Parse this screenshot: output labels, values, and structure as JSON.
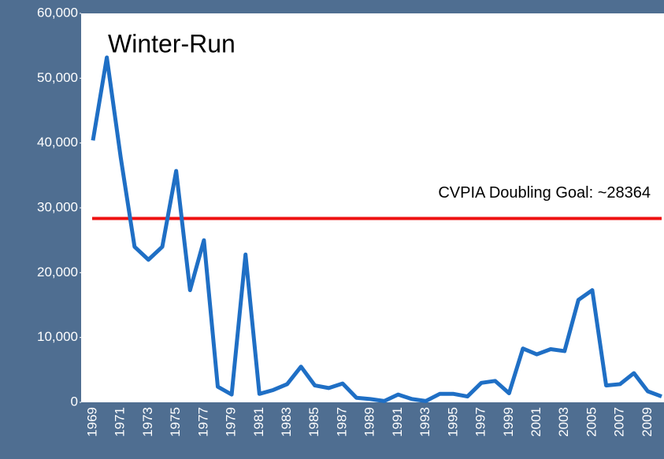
{
  "chart_data": {
    "type": "line",
    "title": "Winter-Run",
    "categories": [
      "1969",
      null,
      "1971",
      null,
      "1973",
      null,
      "1975",
      null,
      "1977",
      null,
      "1979",
      null,
      "1981",
      null,
      "1983",
      null,
      "1985",
      null,
      "1987",
      null,
      "1989",
      null,
      "1991",
      null,
      "1993",
      null,
      "1995",
      null,
      "1997",
      null,
      "1999",
      null,
      "2001",
      null,
      "2003",
      null,
      "2005",
      null,
      "2007",
      null,
      "2009",
      null
    ],
    "values": [
      40400,
      53200,
      37800,
      24000,
      22000,
      24000,
      35700,
      17300,
      25000,
      2400,
      1200,
      22800,
      1300,
      1900,
      2800,
      5500,
      2600,
      2200,
      2900,
      700,
      500,
      200,
      1200,
      500,
      200,
      1300,
      1300,
      900,
      3000,
      3300,
      1400,
      8300,
      7400,
      8200,
      7900,
      15800,
      17300,
      2600,
      2800,
      4500,
      1700,
      900
    ],
    "color": "#1f6fc5",
    "ylim": [
      0,
      60000
    ],
    "yticks": [
      0,
      {
        "value": 10000,
        "label": "10,000"
      },
      {
        "value": 20000,
        "label": "20,000"
      },
      {
        "value": 30000,
        "label": "30,000"
      },
      {
        "value": 40000,
        "label": "40,000"
      },
      {
        "value": 50000,
        "label": "50,000"
      },
      {
        "value": 60000,
        "label": "60,000"
      }
    ],
    "grid": false,
    "reference_line": {
      "value": 28364,
      "label": "CVPIA Doubling Goal: ~28364",
      "color": "#ee1111"
    }
  }
}
